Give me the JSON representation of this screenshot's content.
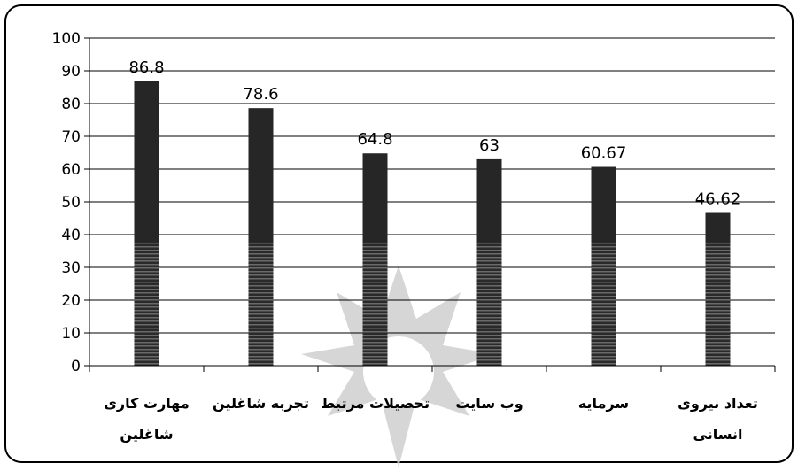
{
  "chart_data": {
    "type": "bar",
    "categories": [
      [
        "مهارت کاری",
        "شاغلین"
      ],
      [
        "تجربه شاغلین"
      ],
      [
        "تحصیلات مرتبط"
      ],
      [
        "وب سایت"
      ],
      [
        "سرمایه"
      ],
      [
        "تعداد نیروی",
        "انسانی"
      ]
    ],
    "values": [
      86.8,
      78.6,
      64.8,
      63,
      60.67,
      46.62
    ],
    "data_labels": [
      "86.8",
      "78.6",
      "64.8",
      "63",
      "60.67",
      "46.62"
    ],
    "ylim": [
      0,
      100
    ],
    "yticks": [
      0,
      10,
      20,
      30,
      40,
      50,
      60,
      70,
      80,
      90,
      100
    ],
    "grid": true,
    "legend": "none",
    "colors": {
      "bar": "#262626",
      "grid": "#000000",
      "watermark": "#c8c8c8"
    }
  }
}
